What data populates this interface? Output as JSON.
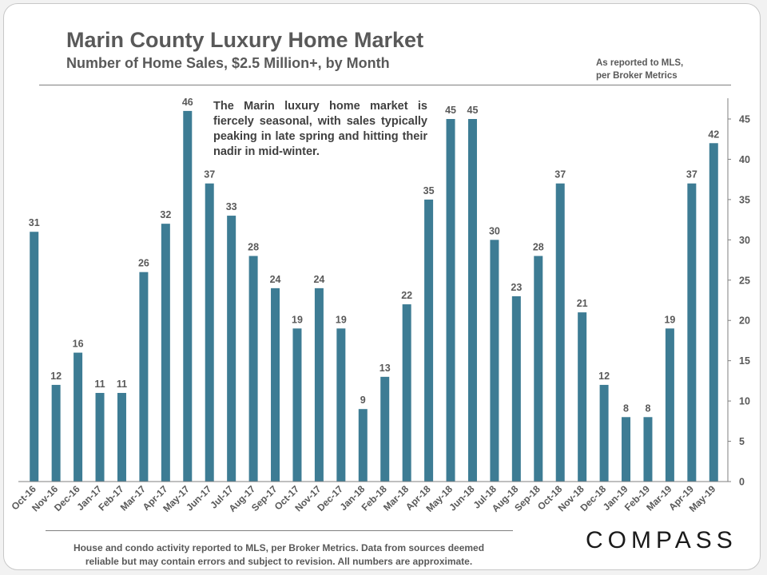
{
  "header": {
    "title": "Marin County Luxury Home Market",
    "subtitle": "Number of Home Sales, $2.5 Million+,  by Month",
    "source_note_line1": "As reported to MLS,",
    "source_note_line2": "per Broker Metrics"
  },
  "annotation": "The Marin luxury home market is fiercely seasonal, with sales typically peaking in late spring and hitting their nadir in mid-winter.",
  "footer": {
    "note_line1": "House and condo activity reported to MLS, per Broker Metrics. Data from sources deemed",
    "note_line2": "reliable but may contain errors and subject to revision. All numbers are approximate.",
    "logo": "COMPASS"
  },
  "colors": {
    "bar": "#3d7c94",
    "text": "#595959",
    "axis": "#7f7f7f"
  },
  "chart_data": {
    "type": "bar",
    "title": "Marin County Luxury Home Market",
    "subtitle": "Number of Home Sales, $2.5 Million+,  by Month",
    "xlabel": "",
    "ylabel": "",
    "categories": [
      "Oct-16",
      "Nov-16",
      "Dec-16",
      "Jan-17",
      "Feb-17",
      "Mar-17",
      "Apr-17",
      "May-17",
      "Jun-17",
      "Jul-17",
      "Aug-17",
      "Sep-17",
      "Oct-17",
      "Nov-17",
      "Dec-17",
      "Jan-18",
      "Feb-18",
      "Mar-18",
      "Apr-18",
      "May-18",
      "Jun-18",
      "Jul-18",
      "Aug-18",
      "Sep-18",
      "Oct-18",
      "Nov-18",
      "Dec-18",
      "Jan-19",
      "Feb-19",
      "Mar-19",
      "Apr-19",
      "May-19"
    ],
    "values": [
      31,
      12,
      16,
      11,
      11,
      26,
      32,
      46,
      37,
      33,
      28,
      24,
      19,
      24,
      19,
      9,
      13,
      22,
      35,
      45,
      45,
      30,
      23,
      28,
      37,
      21,
      12,
      8,
      8,
      19,
      37,
      42
    ],
    "ylim": [
      0,
      45
    ],
    "yticks": [
      0,
      5,
      10,
      15,
      20,
      25,
      30,
      35,
      40,
      45
    ],
    "y_axis_side": "right",
    "data_labels": true,
    "grid": false,
    "legend": "none"
  }
}
